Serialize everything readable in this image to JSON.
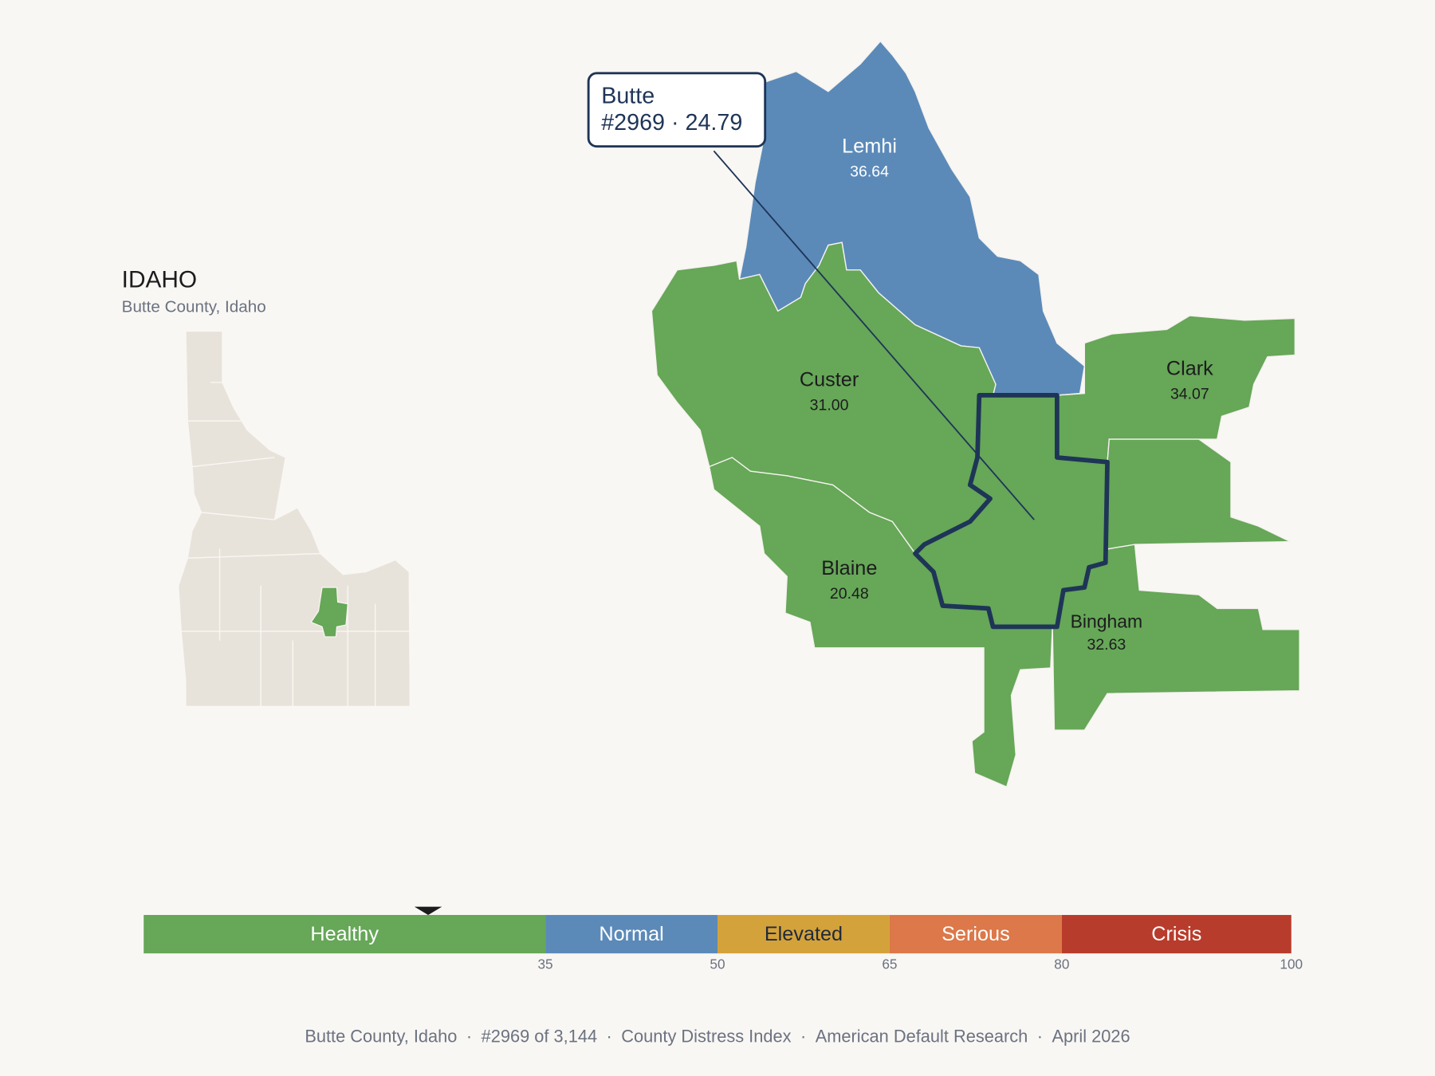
{
  "inset": {
    "title": "IDAHO",
    "subtitle": "Butte County, Idaho"
  },
  "callout": {
    "name": "Butte",
    "rank": "#2969",
    "separator": "·",
    "score": 24.79
  },
  "counties": [
    {
      "name": "Lemhi",
      "value": "36.64",
      "color": "#5b8ab9"
    },
    {
      "name": "Custer",
      "value": "31.00",
      "color": "#66a758"
    },
    {
      "name": "Clark",
      "value": "34.07",
      "color": "#66a758"
    },
    {
      "name": "Blaine",
      "value": "20.48",
      "color": "#66a758"
    },
    {
      "name": "Bingham",
      "value": "32.63",
      "color": "#66a758"
    }
  ],
  "scale": {
    "range": [
      0,
      100
    ],
    "ticks": [
      35,
      50,
      65,
      80,
      100
    ],
    "bands": [
      {
        "label": "Healthy",
        "color": "#66a758",
        "text_color": "#ffffff"
      },
      {
        "label": "Normal",
        "color": "#5b8ab9",
        "text_color": "#ffffff"
      },
      {
        "label": "Elevated",
        "color": "#d4a23a",
        "text_color": "#1f2a3a"
      },
      {
        "label": "Serious",
        "color": "#dc7849",
        "text_color": "#ffffff"
      },
      {
        "label": "Crisis",
        "color": "#b83c2c",
        "text_color": "#ffffff"
      }
    ]
  },
  "footer": {
    "items": [
      "Butte County, Idaho",
      "#2969 of 3,144",
      "County Distress Index",
      "American Default Research",
      "April 2026"
    ],
    "separator": "·"
  }
}
